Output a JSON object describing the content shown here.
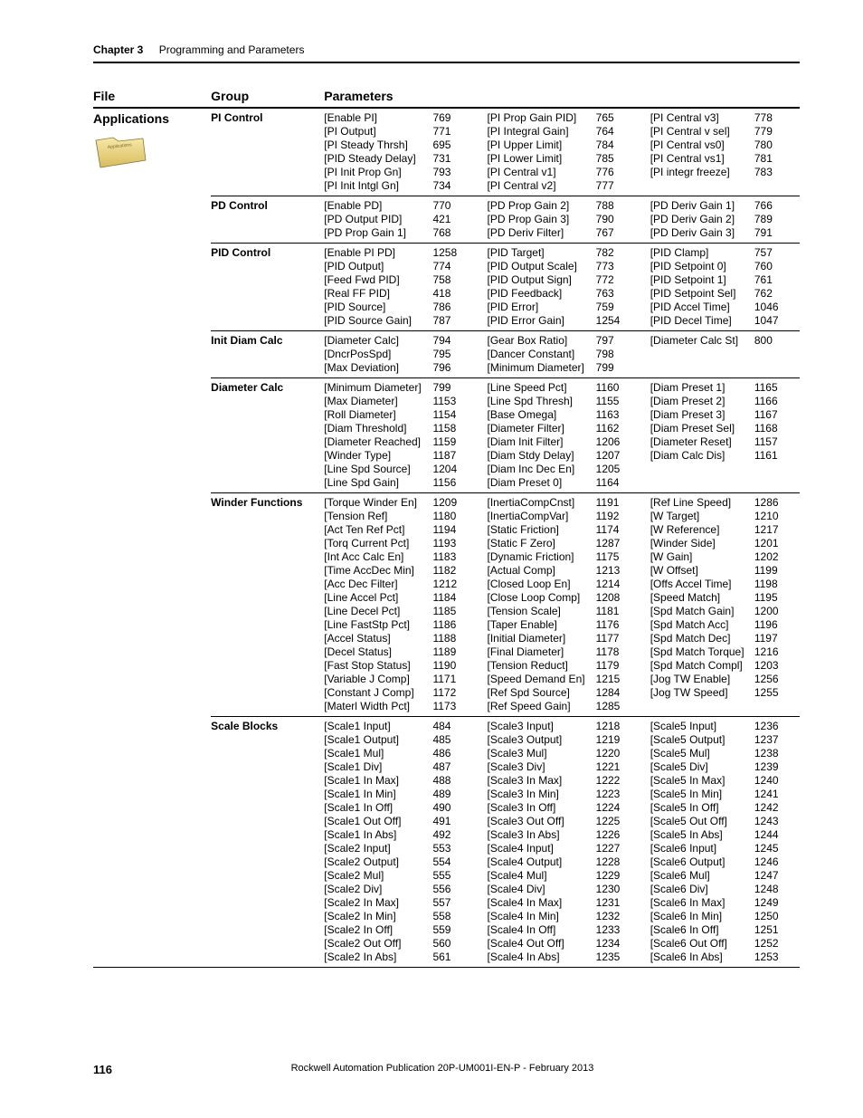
{
  "header": {
    "chapter": "Chapter 3",
    "section": "Programming and Parameters"
  },
  "columns": {
    "file": "File",
    "group": "Group",
    "params": "Parameters"
  },
  "file_label": "Applications",
  "groups": [
    {
      "name": "PI Control",
      "cols": [
        [
          [
            "[Enable PI]",
            "769"
          ],
          [
            "[PI Output]",
            "771"
          ],
          [
            "[PI Steady Thrsh]",
            "695"
          ],
          [
            "[PID Steady Delay]",
            "731"
          ],
          [
            "[PI Init Prop Gn]",
            "793"
          ],
          [
            "[PI Init Intgl Gn]",
            "734"
          ]
        ],
        [
          [
            "[PI Prop Gain PID]",
            "765"
          ],
          [
            "[PI Integral Gain]",
            "764"
          ],
          [
            "[PI Upper Limit]",
            "784"
          ],
          [
            "[PI Lower Limit]",
            "785"
          ],
          [
            "[PI Central v1]",
            "776"
          ],
          [
            "[PI Central v2]",
            "777"
          ]
        ],
        [
          [
            "[PI Central v3]",
            "778"
          ],
          [
            "[PI Central v sel]",
            "779"
          ],
          [
            "[PI Central vs0]",
            "780"
          ],
          [
            "[PI Central vs1]",
            "781"
          ],
          [
            "[PI integr freeze]",
            "783"
          ]
        ]
      ]
    },
    {
      "name": "PD Control",
      "cols": [
        [
          [
            "[Enable PD]",
            "770"
          ],
          [
            "[PD Output PID]",
            "421"
          ],
          [
            "[PD Prop Gain 1]",
            "768"
          ]
        ],
        [
          [
            "[PD Prop Gain 2]",
            "788"
          ],
          [
            "[PD Prop Gain 3]",
            "790"
          ],
          [
            "[PD Deriv Filter]",
            "767"
          ]
        ],
        [
          [
            "[PD Deriv Gain 1]",
            "766"
          ],
          [
            "[PD Deriv Gain 2]",
            "789"
          ],
          [
            "[PD Deriv Gain 3]",
            "791"
          ]
        ]
      ]
    },
    {
      "name": "PID Control",
      "cols": [
        [
          [
            "[Enable PI PD]",
            "1258"
          ],
          [
            "[PID Output]",
            "774"
          ],
          [
            "[Feed Fwd PID]",
            "758"
          ],
          [
            "[Real FF PID]",
            "418"
          ],
          [
            "[PID Source]",
            "786"
          ],
          [
            "[PID Source Gain]",
            "787"
          ]
        ],
        [
          [
            "[PID Target]",
            "782"
          ],
          [
            "[PID Output Scale]",
            "773"
          ],
          [
            "[PID Output Sign]",
            "772"
          ],
          [
            "[PID Feedback]",
            "763"
          ],
          [
            "[PID Error]",
            "759"
          ],
          [
            "[PID Error Gain]",
            "1254"
          ]
        ],
        [
          [
            "[PID Clamp]",
            "757"
          ],
          [
            "[PID Setpoint 0]",
            "760"
          ],
          [
            "[PID Setpoint 1]",
            "761"
          ],
          [
            "[PID Setpoint Sel]",
            "762"
          ],
          [
            "[PID Accel Time]",
            "1046"
          ],
          [
            "[PID Decel Time]",
            "1047"
          ]
        ]
      ]
    },
    {
      "name": "Init Diam Calc",
      "cols": [
        [
          [
            "[Diameter Calc]",
            "794"
          ],
          [
            "[DncrPosSpd]",
            "795"
          ],
          [
            "[Max Deviation]",
            "796"
          ]
        ],
        [
          [
            "[Gear Box Ratio]",
            "797"
          ],
          [
            "[Dancer Constant]",
            "798"
          ],
          [
            "[Minimum Diameter]",
            "799"
          ]
        ],
        [
          [
            "[Diameter Calc St]",
            "800"
          ]
        ]
      ]
    },
    {
      "name": "Diameter Calc",
      "cols": [
        [
          [
            "[Minimum Diameter]",
            "799"
          ],
          [
            "[Max Diameter]",
            "1153"
          ],
          [
            "[Roll Diameter]",
            "1154"
          ],
          [
            "[Diam Threshold]",
            "1158"
          ],
          [
            "[Diameter Reached]",
            "1159"
          ],
          [
            "[Winder Type]",
            "1187"
          ],
          [
            "[Line Spd Source]",
            "1204"
          ],
          [
            "[Line Spd Gain]",
            "1156"
          ]
        ],
        [
          [
            "[Line Speed Pct]",
            "1160"
          ],
          [
            "[Line Spd Thresh]",
            "1155"
          ],
          [
            "[Base Omega]",
            "1163"
          ],
          [
            "[Diameter Filter]",
            "1162"
          ],
          [
            "[Diam Init Filter]",
            "1206"
          ],
          [
            "[Diam Stdy Delay]",
            "1207"
          ],
          [
            "[Diam Inc Dec En]",
            "1205"
          ],
          [
            "[Diam Preset 0]",
            "1164"
          ]
        ],
        [
          [
            "[Diam Preset 1]",
            "1165"
          ],
          [
            "[Diam Preset 2]",
            "1166"
          ],
          [
            "[Diam Preset 3]",
            "1167"
          ],
          [
            "[Diam Preset Sel]",
            "1168"
          ],
          [
            "[Diameter Reset]",
            "1157"
          ],
          [
            "[Diam Calc Dis]",
            "1161"
          ]
        ]
      ]
    },
    {
      "name": "Winder Functions",
      "cols": [
        [
          [
            "[Torque Winder En]",
            "1209"
          ],
          [
            "[Tension Ref]",
            "1180"
          ],
          [
            "[Act Ten Ref Pct]",
            "1194"
          ],
          [
            "[Torq Current Pct]",
            "1193"
          ],
          [
            "[Int Acc Calc En]",
            "1183"
          ],
          [
            "[Time AccDec Min]",
            "1182"
          ],
          [
            "[Acc Dec Filter]",
            "1212"
          ],
          [
            "[Line Accel Pct]",
            "1184"
          ],
          [
            "[Line Decel Pct]",
            "1185"
          ],
          [
            "[Line FastStp Pct]",
            "1186"
          ],
          [
            "[Accel Status]",
            "1188"
          ],
          [
            "[Decel Status]",
            "1189"
          ],
          [
            "[Fast Stop Status]",
            "1190"
          ],
          [
            "[Variable J Comp]",
            "1171"
          ],
          [
            "[Constant J Comp]",
            "1172"
          ],
          [
            "[Materl Width Pct]",
            "1173"
          ]
        ],
        [
          [
            "[InertiaCompCnst]",
            "1191"
          ],
          [
            "[InertiaCompVar]",
            "1192"
          ],
          [
            "[Static Friction]",
            "1174"
          ],
          [
            "[Static F Zero]",
            "1287"
          ],
          [
            "[Dynamic Friction]",
            "1175"
          ],
          [
            "[Actual Comp]",
            "1213"
          ],
          [
            "[Closed Loop En]",
            "1214"
          ],
          [
            "[Close Loop Comp]",
            "1208"
          ],
          [
            "[Tension Scale]",
            "1181"
          ],
          [
            "[Taper Enable]",
            "1176"
          ],
          [
            "[Initial Diameter]",
            "1177"
          ],
          [
            "[Final Diameter]",
            "1178"
          ],
          [
            "[Tension Reduct]",
            "1179"
          ],
          [
            "[Speed Demand En]",
            "1215"
          ],
          [
            "[Ref Spd Source]",
            "1284"
          ],
          [
            "[Ref Speed Gain]",
            "1285"
          ]
        ],
        [
          [
            "[Ref Line Speed]",
            "1286"
          ],
          [
            "[W Target]",
            "1210"
          ],
          [
            "[W Reference]",
            "1217"
          ],
          [
            "[Winder Side]",
            "1201"
          ],
          [
            "[W Gain]",
            "1202"
          ],
          [
            "[W Offset]",
            "1199"
          ],
          [
            "[Offs Accel Time]",
            "1198"
          ],
          [
            "[Speed Match]",
            "1195"
          ],
          [
            "[Spd Match Gain]",
            "1200"
          ],
          [
            "[Spd Match Acc]",
            "1196"
          ],
          [
            "[Spd Match Dec]",
            "1197"
          ],
          [
            "[Spd Match Torque]",
            "1216"
          ],
          [
            "[Spd Match Compl]",
            "1203"
          ],
          [
            "[Jog TW Enable]",
            "1256"
          ],
          [
            "[Jog TW Speed]",
            "1255"
          ]
        ]
      ]
    },
    {
      "name": "Scale Blocks",
      "cols": [
        [
          [
            "[Scale1 Input]",
            "484"
          ],
          [
            "[Scale1 Output]",
            "485"
          ],
          [
            "[Scale1 Mul]",
            "486"
          ],
          [
            "[Scale1 Div]",
            "487"
          ],
          [
            "[Scale1 In Max]",
            "488"
          ],
          [
            "[Scale1 In Min]",
            "489"
          ],
          [
            "[Scale1 In Off]",
            "490"
          ],
          [
            "[Scale1 Out Off]",
            "491"
          ],
          [
            "[Scale1 In Abs]",
            "492"
          ],
          [
            "[Scale2 Input]",
            "553"
          ],
          [
            "[Scale2 Output]",
            "554"
          ],
          [
            "[Scale2 Mul]",
            "555"
          ],
          [
            "[Scale2 Div]",
            "556"
          ],
          [
            "[Scale2 In Max]",
            "557"
          ],
          [
            "[Scale2 In Min]",
            "558"
          ],
          [
            "[Scale2 In Off]",
            "559"
          ],
          [
            "[Scale2 Out Off]",
            "560"
          ],
          [
            "[Scale2 In Abs]",
            "561"
          ]
        ],
        [
          [
            "[Scale3 Input]",
            "1218"
          ],
          [
            "[Scale3 Output]",
            "1219"
          ],
          [
            "[Scale3 Mul]",
            "1220"
          ],
          [
            "[Scale3 Div]",
            "1221"
          ],
          [
            "[Scale3 In Max]",
            "1222"
          ],
          [
            "[Scale3 In Min]",
            "1223"
          ],
          [
            "[Scale3 In Off]",
            "1224"
          ],
          [
            "[Scale3 Out Off]",
            "1225"
          ],
          [
            "[Scale3 In Abs]",
            "1226"
          ],
          [
            "[Scale4 Input]",
            "1227"
          ],
          [
            "[Scale4 Output]",
            "1228"
          ],
          [
            "[Scale4 Mul]",
            "1229"
          ],
          [
            "[Scale4 Div]",
            "1230"
          ],
          [
            "[Scale4 In Max]",
            "1231"
          ],
          [
            "[Scale4 In Min]",
            "1232"
          ],
          [
            "[Scale4 In Off]",
            "1233"
          ],
          [
            "[Scale4 Out Off]",
            "1234"
          ],
          [
            "[Scale4 In Abs]",
            "1235"
          ]
        ],
        [
          [
            "[Scale5 Input]",
            "1236"
          ],
          [
            "[Scale5 Output]",
            "1237"
          ],
          [
            "[Scale5 Mul]",
            "1238"
          ],
          [
            "[Scale5 Div]",
            "1239"
          ],
          [
            "[Scale5 In Max]",
            "1240"
          ],
          [
            "[Scale5 In Min]",
            "1241"
          ],
          [
            "[Scale5 In Off]",
            "1242"
          ],
          [
            "[Scale5 Out Off]",
            "1243"
          ],
          [
            "[Scale5 In Abs]",
            "1244"
          ],
          [
            "[Scale6 Input]",
            "1245"
          ],
          [
            "[Scale6 Output]",
            "1246"
          ],
          [
            "[Scale6 Mul]",
            "1247"
          ],
          [
            "[Scale6 Div]",
            "1248"
          ],
          [
            "[Scale6 In Max]",
            "1249"
          ],
          [
            "[Scale6 In Min]",
            "1250"
          ],
          [
            "[Scale6 In Off]",
            "1251"
          ],
          [
            "[Scale6 Out Off]",
            "1252"
          ],
          [
            "[Scale6 In Abs]",
            "1253"
          ]
        ]
      ]
    }
  ],
  "footer": {
    "page": "116",
    "pub": "Rockwell Automation Publication 20P-UM001I-EN-P - February 2013"
  }
}
